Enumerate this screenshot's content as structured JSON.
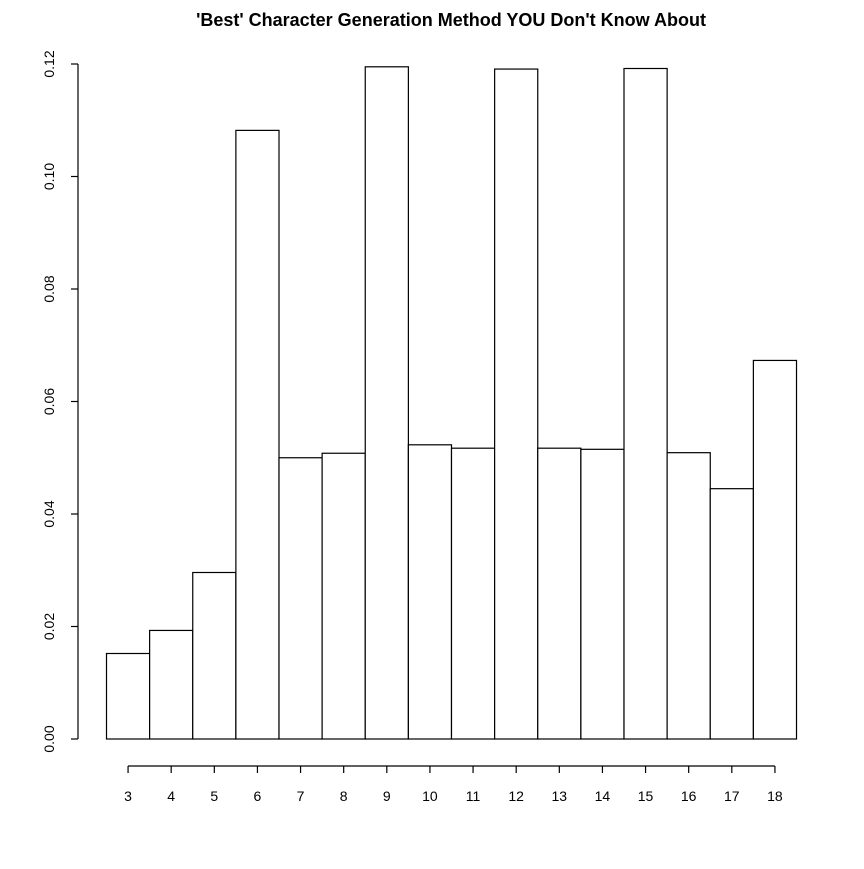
{
  "chart_data": {
    "type": "bar",
    "title": "'Best' Character Generation Method YOU Don't Know About",
    "xlabel": "",
    "ylabel": "",
    "categories": [
      "3",
      "4",
      "5",
      "6",
      "7",
      "8",
      "9",
      "10",
      "11",
      "12",
      "13",
      "14",
      "15",
      "16",
      "17",
      "18"
    ],
    "values": [
      0.0152,
      0.0193,
      0.0296,
      0.1082,
      0.05,
      0.0508,
      0.1195,
      0.0523,
      0.0517,
      0.1191,
      0.0517,
      0.0515,
      0.1192,
      0.0509,
      0.0445,
      0.0673
    ],
    "ylim": [
      0,
      0.12
    ],
    "y_ticks": [
      "0.00",
      "0.02",
      "0.04",
      "0.06",
      "0.08",
      "0.10",
      "0.12"
    ],
    "grid": false,
    "legend": "none",
    "bar_fill": "#ffffff",
    "bar_stroke": "#000000"
  }
}
